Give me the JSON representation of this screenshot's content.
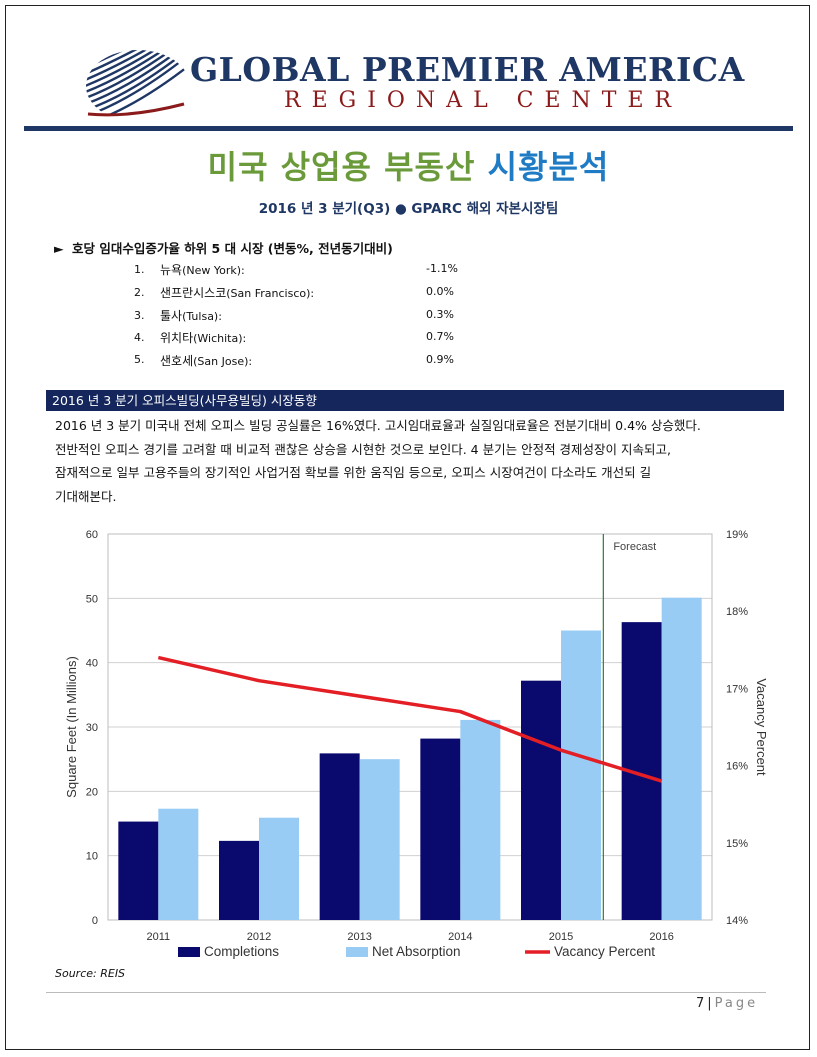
{
  "header": {
    "org_name": "GLOBAL PREMIER AMERICA",
    "org_sub": "REGIONAL CENTER",
    "logo_icon": "globe-stripes-logo-icon"
  },
  "title": {
    "part1": "미국 상업용 부동산",
    "part2": "시황분석",
    "subtitle": "2016 년 3 분기(Q3) ● GPARC 해외 자본시장팀"
  },
  "ranking": {
    "arrow": "►",
    "heading": "호당 임대수입증가율 하위 5 대 시장 (변동%, 전년동기대비)",
    "items": [
      {
        "num": "1.",
        "name": "뉴욕",
        "en": "(New York):",
        "value": "-1.1%"
      },
      {
        "num": "2.",
        "name": "샌프란시스코",
        "en": "(San Francisco):",
        "value": "0.0%"
      },
      {
        "num": "3.",
        "name": "툴사",
        "en": "(Tulsa):",
        "value": "0.3%"
      },
      {
        "num": "4.",
        "name": "위치타",
        "en": "(Wichita):",
        "value": "0.7%"
      },
      {
        "num": "5.",
        "name": "샌호세",
        "en": "(San Jose):",
        "value": "0.9%"
      }
    ]
  },
  "section": {
    "heading": "2016 년 3 분기 오피스빌딩(사무용빌딩) 시장동향",
    "lines": [
      "2016 년 3 분기 미국내 전체 오피스 빌딩 공실률은 16%였다. 고시임대료율과 실질임대료율은 전분기대비 0.4% 상승했다.",
      "전반적인 오피스 경기를 고려할 때 비교적 괜찮은 상승을 시현한 것으로 보인다. 4 분기는 안정적 경제성장이 지속되고,",
      "잠재적으로 일부 고용주들의 장기적인 사업거점 확보를 위한 움직임 등으로, 오피스 시장여건이 다소라도 개선되 길",
      "기대해본다."
    ]
  },
  "chart_data": {
    "type": "bar",
    "categories": [
      "2011",
      "2012",
      "2013",
      "2014",
      "2015",
      "2016"
    ],
    "series": [
      {
        "name": "Completions",
        "type": "bar",
        "axis": "left",
        "color": "#0a0a6e",
        "values": [
          15.3,
          12.3,
          25.9,
          28.2,
          37.2,
          46.3
        ]
      },
      {
        "name": "Net Absorption",
        "type": "bar",
        "axis": "left",
        "color": "#99ccf5",
        "values": [
          17.3,
          15.9,
          25.0,
          31.1,
          45.0,
          50.1
        ]
      },
      {
        "name": "Vacancy Percent",
        "type": "line",
        "axis": "right",
        "color": "#e31e24",
        "values": [
          17.4,
          17.1,
          16.9,
          16.7,
          16.2,
          15.8
        ]
      }
    ],
    "ylabel": "Square Feet (In Millions)",
    "y2label": "Vacancy Percent",
    "ylim": [
      0,
      60
    ],
    "yticks": [
      "0",
      "10",
      "20",
      "30",
      "40",
      "50",
      "60"
    ],
    "y2lim": [
      14,
      19
    ],
    "y2ticks": [
      "14%",
      "15%",
      "16%",
      "17%",
      "18%",
      "19%"
    ],
    "grid": true,
    "annotation": {
      "label": "Forecast",
      "between": [
        "2015",
        "2016"
      ],
      "color": "#2e7d32"
    },
    "legend_position": "bottom"
  },
  "source": "Source: REIS",
  "footer": {
    "page": "7",
    "separator": "|",
    "word": "Page"
  }
}
